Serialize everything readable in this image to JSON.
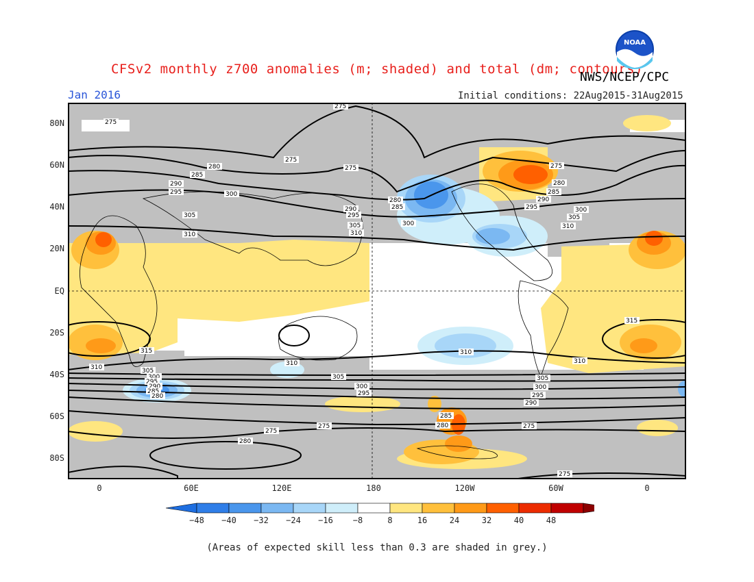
{
  "header": {
    "title": "CFSv2 monthly z700 anomalies (m; shaded) and total (dm; contours)",
    "agency": "NWS/NCEP/CPC",
    "valid_month": "Jan 2016",
    "initial_conditions": "Initial conditions: 22Aug2015-31Aug2015",
    "logo_text": "NOAA"
  },
  "map": {
    "lat_ticks": [
      "80N",
      "60N",
      "40N",
      "20N",
      "EQ",
      "20S",
      "40S",
      "60S",
      "80S"
    ],
    "lon_ticks": [
      "0",
      "60E",
      "120E",
      "180",
      "120W",
      "60W",
      "0"
    ],
    "grey_color": "#c0c0c0",
    "contour_labels": {
      "c275": "275",
      "c280": "280",
      "c285": "285",
      "c290": "290",
      "c295": "295",
      "c300": "300",
      "c305": "305",
      "c310": "310",
      "c315": "315"
    }
  },
  "colorbar": {
    "labels": [
      "-48",
      "-40",
      "-32",
      "-24",
      "-16",
      "-8",
      "8",
      "16",
      "24",
      "32",
      "40",
      "48"
    ],
    "colors": [
      "#1e6ee0",
      "#2f7ee8",
      "#4a96ec",
      "#7bb8f2",
      "#a8d6f8",
      "#cfeefa",
      "#ffffff",
      "#ffe680",
      "#ffc03c",
      "#ff9a18",
      "#ff6000",
      "#ec2c00",
      "#c00000",
      "#8c0000"
    ]
  },
  "footnote": "(Areas of expected skill less than 0.3 are shaded in grey.)"
}
